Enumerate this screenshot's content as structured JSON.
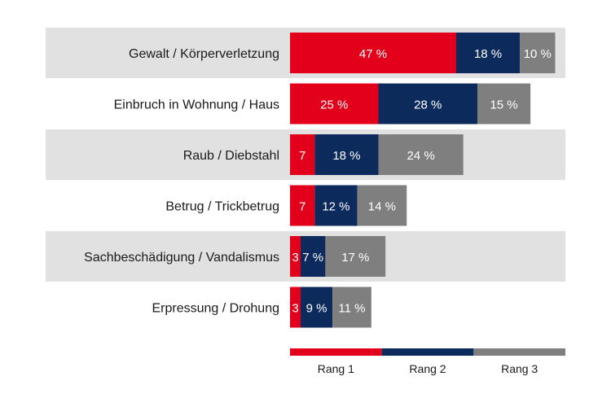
{
  "chart_data": {
    "type": "bar",
    "orientation": "horizontal",
    "stacked": true,
    "title": "",
    "xlabel": "",
    "ylabel": "",
    "xlim": [
      0,
      100
    ],
    "grid": false,
    "legend_position": "bottom",
    "categories": [
      "Gewalt / Körperverletzung",
      "Einbruch in Wohnung / Haus",
      "Raub / Diebstahl",
      "Betrug / Trickbetrug",
      "Sachbeschädigung / Vandalismus",
      "Erpressung / Drohung"
    ],
    "series": [
      {
        "name": "Rang 1",
        "color": "#e2001a",
        "values": [
          47,
          25,
          7,
          7,
          3,
          3
        ],
        "labels": [
          "47 %",
          "25 %",
          "7",
          "7",
          "3",
          "3"
        ]
      },
      {
        "name": "Rang 2",
        "color": "#0c2a5c",
        "values": [
          18,
          28,
          18,
          12,
          7,
          9
        ],
        "labels": [
          "18 %",
          "28 %",
          "18 %",
          "12 %",
          "7 %",
          "9 %"
        ]
      },
      {
        "name": "Rang 3",
        "color": "#7f7f7f",
        "values": [
          10,
          15,
          24,
          14,
          17,
          11
        ],
        "labels": [
          "10 %",
          "15 %",
          "24 %",
          "14 %",
          "17 %",
          "11 %"
        ]
      }
    ],
    "row_band_color": "#e1e1e1"
  }
}
